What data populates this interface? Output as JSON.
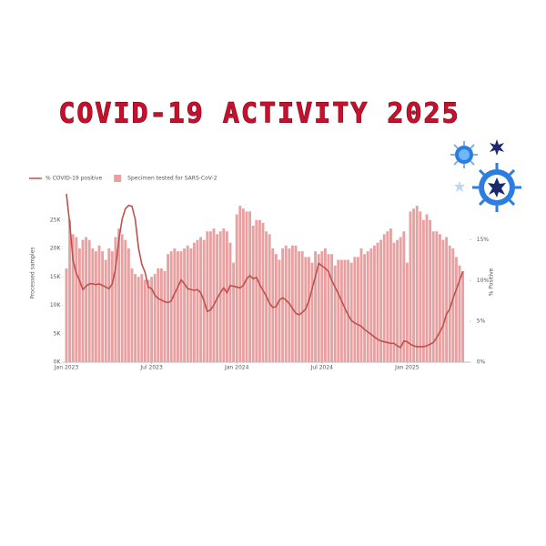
{
  "chart_data": {
    "type": "bar",
    "title": "COVID-19 ACTIVITY 2025",
    "ylabel": "Processed samples",
    "y2label": "% Positive",
    "x": [
      0,
      1,
      2,
      3,
      4,
      5,
      6,
      7,
      8,
      9,
      10,
      11,
      12,
      13,
      14,
      15,
      16,
      17,
      18,
      19,
      20,
      21,
      22,
      23,
      24,
      25,
      26,
      27,
      28,
      29,
      30,
      31,
      32,
      33,
      34,
      35,
      36,
      37,
      38,
      39,
      40,
      41,
      42,
      43,
      44,
      45,
      46,
      47,
      48,
      49,
      50,
      51,
      52,
      53,
      54,
      55,
      56,
      57,
      58,
      59,
      60,
      61,
      62,
      63,
      64,
      65,
      66,
      67,
      68,
      69,
      70,
      71,
      72,
      73,
      74,
      75,
      76,
      77,
      78,
      79,
      80,
      81,
      82,
      83,
      84,
      85,
      86,
      87,
      88,
      89,
      90,
      91,
      92,
      93,
      94,
      95,
      96,
      97,
      98,
      99,
      100,
      101,
      102,
      103,
      104,
      105,
      106,
      107,
      108,
      109,
      110,
      111,
      112,
      113,
      114,
      115,
      116,
      117,
      118,
      119,
      120,
      121
    ],
    "xlim": [
      -1,
      123
    ],
    "xticks": [
      {
        "value": 0,
        "label": "Jan 2023"
      },
      {
        "value": 26,
        "label": "Jul 2023"
      },
      {
        "value": 52,
        "label": "Jan 2024"
      },
      {
        "value": 78,
        "label": "Jul 2024"
      },
      {
        "value": 104,
        "label": "Jan 2025"
      }
    ],
    "ylim": [
      0,
      28000
    ],
    "yticks": [
      {
        "value": 0,
        "label": "0K"
      },
      {
        "value": 5000,
        "label": "5K"
      },
      {
        "value": 10000,
        "label": "10K"
      },
      {
        "value": 15000,
        "label": "15K"
      },
      {
        "value": 20000,
        "label": "20K"
      },
      {
        "value": 25000,
        "label": "25K"
      }
    ],
    "y2lim": [
      0,
      19.5
    ],
    "y2ticks": [
      {
        "value": 0,
        "label": "0%"
      },
      {
        "value": 5,
        "label": "5%"
      },
      {
        "value": 10,
        "label": "10%"
      },
      {
        "value": 15,
        "label": "15%"
      }
    ],
    "series": [
      {
        "name": "Specimen tested for SARS-CoV-2",
        "type": "bar",
        "color": "#e8a0a0",
        "values": [
          16500,
          25000,
          22500,
          22000,
          20000,
          21500,
          22000,
          21500,
          20000,
          19500,
          20500,
          19500,
          18000,
          20000,
          19500,
          22000,
          23500,
          22500,
          21500,
          20000,
          16500,
          15500,
          15000,
          15500,
          14500,
          14500,
          15000,
          15500,
          16500,
          16500,
          16000,
          19000,
          19500,
          20000,
          19500,
          19500,
          20000,
          20500,
          20000,
          21000,
          21500,
          22000,
          21500,
          23000,
          23000,
          23500,
          22500,
          23000,
          23500,
          23000,
          21000,
          17500,
          26000,
          27500,
          27000,
          26500,
          26500,
          24000,
          25000,
          25000,
          24500,
          23000,
          22500,
          20000,
          19000,
          18000,
          20000,
          20500,
          20000,
          20500,
          20500,
          19500,
          19500,
          18500,
          18500,
          17500,
          19500,
          19000,
          19500,
          20000,
          19000,
          19000,
          17000,
          18000,
          18000,
          18000,
          18000,
          17500,
          18500,
          18500,
          20000,
          19000,
          19500,
          20000,
          20500,
          21000,
          21500,
          22500,
          23000,
          23500,
          21000,
          21500,
          22000,
          23000,
          17500,
          26500,
          27000,
          27500,
          26500,
          25000,
          26000,
          25000,
          23000,
          23000,
          22500,
          21500,
          22000,
          20500,
          20000,
          18500,
          17000,
          16000
        ]
      },
      {
        "name": "% COVID-19 positive",
        "type": "line",
        "axis": "y2",
        "color": "#c0504d",
        "values": [
          20.6,
          17,
          12.5,
          10.9,
          10,
          8.9,
          9.3,
          9.6,
          9.6,
          9.5,
          9.6,
          9.4,
          9.2,
          9.0,
          9.6,
          11.5,
          15,
          17.5,
          18.8,
          19.2,
          19.1,
          17.5,
          14,
          12,
          11,
          9.2,
          9.0,
          8.2,
          7.8,
          7.6,
          7.4,
          7.3,
          7.5,
          8.4,
          9.2,
          10.1,
          9.6,
          9.0,
          8.9,
          8.8,
          8.9,
          8.5,
          7.5,
          6.2,
          6.4,
          7.0,
          7.8,
          8.5,
          9.1,
          8.5,
          9.4,
          9.3,
          9.2,
          9.1,
          9.4,
          10.2,
          10.6,
          10.2,
          10.4,
          9.5,
          8.8,
          8.1,
          7.2,
          6.7,
          6.8,
          7.6,
          7.9,
          7.6,
          7.2,
          6.6,
          6.0,
          5.8,
          6.1,
          6.5,
          7.5,
          9.0,
          10.5,
          12.1,
          11.8,
          11.5,
          11.1,
          10.0,
          9.2,
          8.4,
          7.5,
          6.6,
          5.8,
          5.1,
          4.8,
          4.6,
          4.4,
          4.0,
          3.7,
          3.4,
          3.1,
          2.8,
          2.6,
          2.5,
          2.4,
          2.3,
          2.3,
          2.0,
          1.8,
          2.6,
          2.5,
          2.2,
          2.0,
          1.9,
          1.9,
          1.9,
          2.0,
          2.2,
          2.4,
          3.0,
          3.7,
          4.5,
          5.9,
          6.5,
          7.8,
          8.9,
          10.0,
          11.1
        ]
      }
    ]
  }
}
